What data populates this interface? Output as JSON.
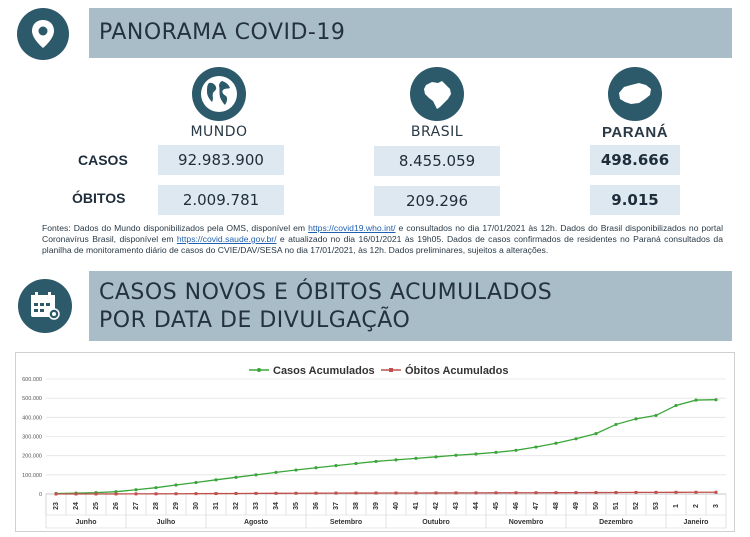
{
  "header": {
    "title": "PANORAMA COVID-19",
    "icon": "location-pin-icon"
  },
  "columns": [
    {
      "label": "MUNDO",
      "icon": "globe-icon"
    },
    {
      "label": "BRASIL",
      "icon": "brazil-map-icon"
    },
    {
      "label": "PARANÁ",
      "icon": "parana-map-icon"
    }
  ],
  "rows": [
    {
      "label": "CASOS",
      "values": [
        "92.983.900",
        "8.455.059",
        "498.666"
      ]
    },
    {
      "label": "ÓBITOS",
      "values": [
        "2.009.781",
        "209.296",
        "9.015"
      ]
    }
  ],
  "note": {
    "p1": "Fontes: Dados do Mundo disponibilizados pela OMS, disponível em ",
    "link1": "https://covid19.who.int/",
    "p2": " e consultados no dia 17/01/2021 às 12h. Dados do Brasil disponibilizados no portal Coronavírus Brasil, disponível em ",
    "link2": "https://covid.saude.gov.br/",
    "p3": " e atualizado no dia 16/01/2021 às 19h05. Dados de casos confirmados de residentes no Paraná consultados da planilha de monitoramento diário de casos do CVIE/DAV/SESA no dia 17/01/2021, às 12h. Dados preliminares, sujeitos a alterações."
  },
  "section2": {
    "title_line1": "CASOS NOVOS E ÓBITOS ACUMULADOS",
    "title_line2": "POR DATA DE DIVULGAÇÃO",
    "icon": "calendar-virus-icon"
  },
  "colors": {
    "dark": "#2d5a6b",
    "banner": "#a9bdc9",
    "box": "#dde8f0",
    "cases": "#3aa63a",
    "deaths": "#c0504d"
  },
  "chart_data": {
    "type": "line",
    "title": "",
    "legend_position": "top-center",
    "x": [
      "23",
      "24",
      "25",
      "26",
      "27",
      "28",
      "29",
      "30",
      "31",
      "32",
      "33",
      "34",
      "35",
      "36",
      "37",
      "38",
      "39",
      "40",
      "41",
      "42",
      "43",
      "44",
      "45",
      "46",
      "47",
      "48",
      "49",
      "50",
      "51",
      "52",
      "53",
      "1",
      "2",
      "3"
    ],
    "months": [
      {
        "label": "Junho",
        "span": 4
      },
      {
        "label": "Julho",
        "span": 4
      },
      {
        "label": "Agosto",
        "span": 5
      },
      {
        "label": "Setembro",
        "span": 4
      },
      {
        "label": "Outubro",
        "span": 5
      },
      {
        "label": "Novembro",
        "span": 4
      },
      {
        "label": "Dezembro",
        "span": 5
      },
      {
        "label": "Janeiro",
        "span": 3
      }
    ],
    "yticks": [
      "0",
      "100.000",
      "200.000",
      "300.000",
      "400.000",
      "500.000",
      "600.000"
    ],
    "ylim": [
      0,
      600000
    ],
    "grid": true,
    "series": [
      {
        "name": "Casos Acumulados",
        "color": "#3aa63a",
        "values": [
          2500,
          4500,
          7000,
          12000,
          22000,
          33000,
          47000,
          60000,
          74000,
          87000,
          100000,
          113000,
          125000,
          137000,
          148000,
          159000,
          170000,
          178000,
          186000,
          194000,
          202000,
          209000,
          217000,
          228000,
          245000,
          265000,
          288000,
          315000,
          363000,
          392000,
          410000,
          462000,
          490000,
          492000
        ]
      },
      {
        "name": "Óbitos Acumulados",
        "color": "#c0504d",
        "values": [
          100,
          150,
          250,
          400,
          700,
          1000,
          1400,
          1800,
          2200,
          2700,
          3200,
          3600,
          3900,
          4200,
          4500,
          4800,
          5000,
          5200,
          5400,
          5600,
          5800,
          6000,
          6200,
          6400,
          6600,
          6900,
          7200,
          7600,
          8000,
          8300,
          8600,
          8800,
          9000,
          9015
        ]
      }
    ]
  }
}
